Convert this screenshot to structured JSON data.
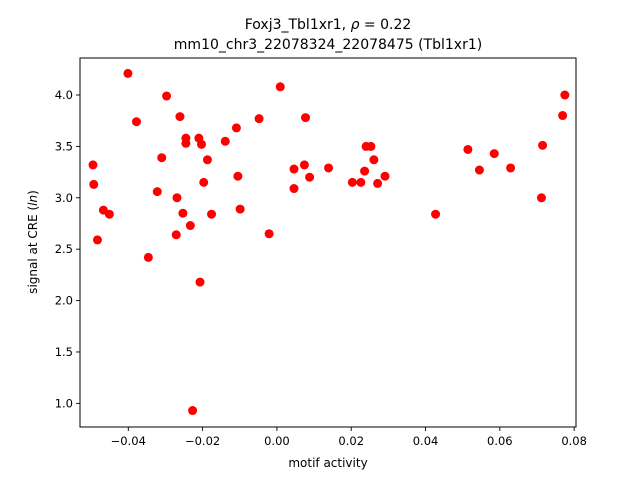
{
  "chart_data": {
    "type": "scatter",
    "title_line1_prefix": "Foxj3_Tbl1xr1, ",
    "title_line1_symbol": "ρ",
    "title_line1_suffix": " = 0.22",
    "title_line2": "mm10_chr3_22078324_22078475 (Tbl1xr1)",
    "xlabel": "motif activity",
    "ylabel_prefix": "signal at CRE (",
    "ylabel_italic": "ln",
    "ylabel_suffix": ")",
    "xlim": [
      -0.053,
      0.0805
    ],
    "ylim": [
      0.77,
      4.36
    ],
    "xticks": [
      -0.04,
      -0.02,
      0.0,
      0.02,
      0.04,
      0.06,
      0.08
    ],
    "xtick_labels": [
      "−0.04",
      "−0.02",
      "0.00",
      "0.02",
      "0.04",
      "0.06",
      "0.08"
    ],
    "yticks": [
      1.0,
      1.5,
      2.0,
      2.5,
      3.0,
      3.5,
      4.0
    ],
    "ytick_labels": [
      "1.0",
      "1.5",
      "2.0",
      "2.5",
      "3.0",
      "3.5",
      "4.0"
    ],
    "marker_color": "#ff0000",
    "points": [
      {
        "x": -0.0495,
        "y": 3.32
      },
      {
        "x": -0.0493,
        "y": 3.13
      },
      {
        "x": -0.0483,
        "y": 2.59
      },
      {
        "x": -0.0467,
        "y": 2.88
      },
      {
        "x": -0.0451,
        "y": 2.84
      },
      {
        "x": -0.0401,
        "y": 4.21
      },
      {
        "x": -0.0378,
        "y": 3.74
      },
      {
        "x": -0.0346,
        "y": 2.42
      },
      {
        "x": -0.0322,
        "y": 3.06
      },
      {
        "x": -0.031,
        "y": 3.39
      },
      {
        "x": -0.0297,
        "y": 3.99
      },
      {
        "x": -0.0271,
        "y": 2.64
      },
      {
        "x": -0.0269,
        "y": 3.0
      },
      {
        "x": -0.0261,
        "y": 3.79
      },
      {
        "x": -0.0253,
        "y": 2.85
      },
      {
        "x": -0.0245,
        "y": 3.58
      },
      {
        "x": -0.0245,
        "y": 3.53
      },
      {
        "x": -0.0233,
        "y": 2.73
      },
      {
        "x": -0.0227,
        "y": 0.93
      },
      {
        "x": -0.021,
        "y": 3.58
      },
      {
        "x": -0.0207,
        "y": 2.18
      },
      {
        "x": -0.0203,
        "y": 3.52
      },
      {
        "x": -0.0197,
        "y": 3.15
      },
      {
        "x": -0.0187,
        "y": 3.37
      },
      {
        "x": -0.0176,
        "y": 2.84
      },
      {
        "x": -0.0139,
        "y": 3.55
      },
      {
        "x": -0.0109,
        "y": 3.68
      },
      {
        "x": -0.0105,
        "y": 3.21
      },
      {
        "x": -0.0099,
        "y": 2.89
      },
      {
        "x": -0.0048,
        "y": 3.77
      },
      {
        "x": -0.0021,
        "y": 2.65
      },
      {
        "x": 0.0009,
        "y": 4.08
      },
      {
        "x": 0.0046,
        "y": 3.28
      },
      {
        "x": 0.0046,
        "y": 3.09
      },
      {
        "x": 0.0074,
        "y": 3.32
      },
      {
        "x": 0.0077,
        "y": 3.78
      },
      {
        "x": 0.0088,
        "y": 3.2
      },
      {
        "x": 0.0139,
        "y": 3.29
      },
      {
        "x": 0.0203,
        "y": 3.15
      },
      {
        "x": 0.0226,
        "y": 3.15
      },
      {
        "x": 0.0236,
        "y": 3.26
      },
      {
        "x": 0.024,
        "y": 3.5
      },
      {
        "x": 0.0253,
        "y": 3.5
      },
      {
        "x": 0.0261,
        "y": 3.37
      },
      {
        "x": 0.0271,
        "y": 3.14
      },
      {
        "x": 0.0291,
        "y": 3.21
      },
      {
        "x": 0.0427,
        "y": 2.84
      },
      {
        "x": 0.0514,
        "y": 3.47
      },
      {
        "x": 0.0545,
        "y": 3.27
      },
      {
        "x": 0.0585,
        "y": 3.43
      },
      {
        "x": 0.0629,
        "y": 3.29
      },
      {
        "x": 0.0712,
        "y": 3.0
      },
      {
        "x": 0.0715,
        "y": 3.51
      },
      {
        "x": 0.0769,
        "y": 3.8
      },
      {
        "x": 0.0775,
        "y": 4.0
      }
    ]
  }
}
